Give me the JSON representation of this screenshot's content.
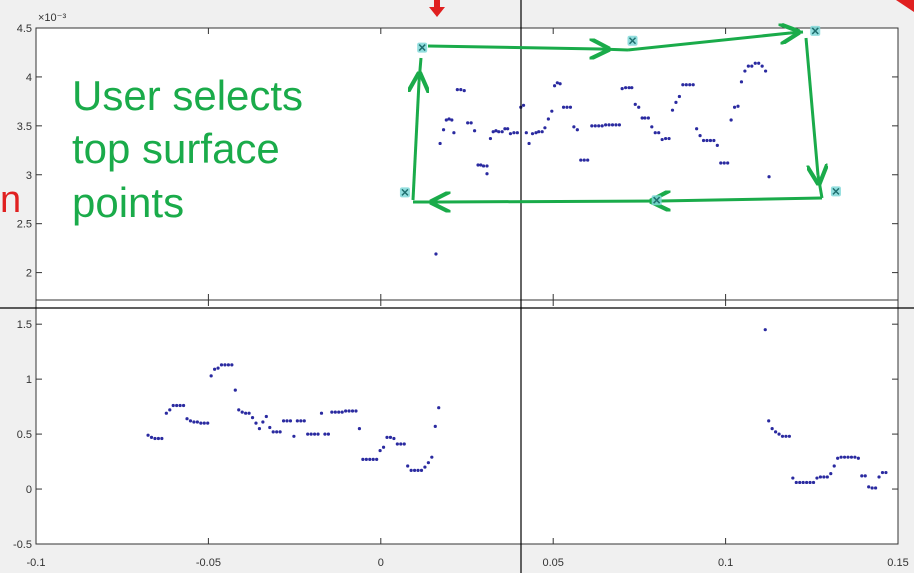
{
  "annotation": {
    "main_lines": [
      "User selects",
      "top surface",
      "points"
    ],
    "side_fragment": "n",
    "color": "#1aab4a",
    "marker_color": "#e02020"
  },
  "colors": {
    "figure_bg": "#f0f0f0",
    "axes_bg": "#ffffff",
    "point_color": "#2a2aa0",
    "selection_marker_fill": "#7fd8d8",
    "selection_marker_stroke": "#1f6f6f",
    "crosshair": "#000000",
    "frame": "#333333"
  },
  "chart_data": [
    {
      "id": "top",
      "type": "scatter",
      "y_exponent_label": "×10⁻³",
      "y_tick_labels": [
        "2",
        "2.5",
        "3",
        "3.5",
        "4",
        "4.5"
      ],
      "yticks": [
        2,
        2.5,
        3,
        3.5,
        4,
        4.5
      ],
      "ylim": [
        1.72,
        4.5
      ],
      "xlim": [
        -0.1,
        0.15
      ],
      "xticks": [
        -0.1,
        -0.05,
        0,
        0.05,
        0.1,
        0.15
      ],
      "grid": false,
      "points": [
        [
          0.016,
          2.19
        ],
        [
          0.0172,
          3.32
        ],
        [
          0.0182,
          3.46
        ],
        [
          0.019,
          3.56
        ],
        [
          0.0198,
          3.57
        ],
        [
          0.0206,
          3.56
        ],
        [
          0.0212,
          3.43
        ],
        [
          0.0222,
          3.87
        ],
        [
          0.0232,
          3.87
        ],
        [
          0.0242,
          3.86
        ],
        [
          0.0252,
          3.53
        ],
        [
          0.0262,
          3.53
        ],
        [
          0.0272,
          3.45
        ],
        [
          0.0282,
          3.1
        ],
        [
          0.029,
          3.1
        ],
        [
          0.0298,
          3.09
        ],
        [
          0.0308,
          3.01
        ],
        [
          0.0308,
          3.09
        ],
        [
          0.0318,
          3.37
        ],
        [
          0.0326,
          3.44
        ],
        [
          0.0334,
          3.45
        ],
        [
          0.0342,
          3.44
        ],
        [
          0.0352,
          3.44
        ],
        [
          0.036,
          3.47
        ],
        [
          0.0368,
          3.47
        ],
        [
          0.0376,
          3.42
        ],
        [
          0.0386,
          3.43
        ],
        [
          0.0396,
          3.43
        ],
        [
          0.0406,
          3.69
        ],
        [
          0.0414,
          3.71
        ],
        [
          0.0422,
          3.43
        ],
        [
          0.043,
          3.32
        ],
        [
          0.044,
          3.42
        ],
        [
          0.045,
          3.43
        ],
        [
          0.0458,
          3.44
        ],
        [
          0.0468,
          3.44
        ],
        [
          0.0476,
          3.48
        ],
        [
          0.0486,
          3.57
        ],
        [
          0.0496,
          3.65
        ],
        [
          0.0504,
          3.91
        ],
        [
          0.0512,
          3.94
        ],
        [
          0.052,
          3.93
        ],
        [
          0.053,
          3.69
        ],
        [
          0.054,
          3.69
        ],
        [
          0.055,
          3.69
        ],
        [
          0.056,
          3.49
        ],
        [
          0.057,
          3.46
        ],
        [
          0.058,
          3.15
        ],
        [
          0.059,
          3.15
        ],
        [
          0.06,
          3.15
        ],
        [
          0.0612,
          3.5
        ],
        [
          0.0622,
          3.5
        ],
        [
          0.0632,
          3.5
        ],
        [
          0.0642,
          3.5
        ],
        [
          0.0652,
          3.51
        ],
        [
          0.0662,
          3.51
        ],
        [
          0.0672,
          3.51
        ],
        [
          0.0682,
          3.51
        ],
        [
          0.0692,
          3.51
        ],
        [
          0.07,
          3.88
        ],
        [
          0.071,
          3.89
        ],
        [
          0.072,
          3.89
        ],
        [
          0.0728,
          3.89
        ],
        [
          0.0738,
          3.72
        ],
        [
          0.0748,
          3.69
        ],
        [
          0.0758,
          3.58
        ],
        [
          0.0766,
          3.58
        ],
        [
          0.0776,
          3.58
        ],
        [
          0.0786,
          3.49
        ],
        [
          0.0796,
          3.43
        ],
        [
          0.0806,
          3.43
        ],
        [
          0.0816,
          3.36
        ],
        [
          0.0826,
          3.37
        ],
        [
          0.0836,
          3.37
        ],
        [
          0.0846,
          3.66
        ],
        [
          0.0856,
          3.74
        ],
        [
          0.0866,
          3.8
        ],
        [
          0.0876,
          3.92
        ],
        [
          0.0886,
          3.92
        ],
        [
          0.0896,
          3.92
        ],
        [
          0.0906,
          3.92
        ],
        [
          0.0916,
          3.47
        ],
        [
          0.0926,
          3.4
        ],
        [
          0.0936,
          3.35
        ],
        [
          0.0946,
          3.35
        ],
        [
          0.0956,
          3.35
        ],
        [
          0.0966,
          3.35
        ],
        [
          0.0976,
          3.3
        ],
        [
          0.0986,
          3.12
        ],
        [
          0.0996,
          3.12
        ],
        [
          0.1006,
          3.12
        ],
        [
          0.1016,
          3.56
        ],
        [
          0.1026,
          3.69
        ],
        [
          0.1036,
          3.7
        ],
        [
          0.1046,
          3.95
        ],
        [
          0.1056,
          4.06
        ],
        [
          0.1066,
          4.11
        ],
        [
          0.1076,
          4.11
        ],
        [
          0.1086,
          4.14
        ],
        [
          0.1096,
          4.14
        ],
        [
          0.1106,
          4.11
        ],
        [
          0.1116,
          4.06
        ],
        [
          0.1126,
          2.98
        ]
      ],
      "selected_points": [
        [
          0.012,
          4.3
        ],
        [
          0.073,
          4.37
        ],
        [
          0.126,
          4.47
        ],
        [
          0.132,
          2.83
        ],
        [
          0.08,
          2.74
        ],
        [
          0.007,
          2.82
        ]
      ]
    },
    {
      "id": "bottom",
      "type": "scatter",
      "y_tick_labels": [
        "-0.5",
        "0",
        "0.5",
        "1",
        "1.5"
      ],
      "yticks": [
        -0.5,
        0,
        0.5,
        1,
        1.5
      ],
      "ylim": [
        -0.5,
        1.72
      ],
      "xlim": [
        -0.1,
        0.15
      ],
      "x_tick_labels": [
        "-0.1",
        "-0.05",
        "0",
        "0.05",
        "0.1",
        "0.15"
      ],
      "xticks": [
        -0.1,
        -0.05,
        0,
        0.05,
        0.1,
        0.15
      ],
      "grid": false,
      "points": [
        [
          -0.0675,
          0.49
        ],
        [
          -0.0665,
          0.47
        ],
        [
          -0.0655,
          0.46
        ],
        [
          -0.0645,
          0.46
        ],
        [
          -0.0635,
          0.46
        ],
        [
          -0.0622,
          0.69
        ],
        [
          -0.0612,
          0.72
        ],
        [
          -0.0602,
          0.76
        ],
        [
          -0.0592,
          0.76
        ],
        [
          -0.0582,
          0.76
        ],
        [
          -0.0572,
          0.76
        ],
        [
          -0.0562,
          0.64
        ],
        [
          -0.0552,
          0.62
        ],
        [
          -0.0542,
          0.61
        ],
        [
          -0.0532,
          0.61
        ],
        [
          -0.0522,
          0.6
        ],
        [
          -0.0512,
          0.6
        ],
        [
          -0.0502,
          0.6
        ],
        [
          -0.0492,
          1.03
        ],
        [
          -0.0482,
          1.09
        ],
        [
          -0.0472,
          1.1
        ],
        [
          -0.0462,
          1.13
        ],
        [
          -0.0452,
          1.13
        ],
        [
          -0.0442,
          1.13
        ],
        [
          -0.0432,
          1.13
        ],
        [
          -0.0422,
          0.9
        ],
        [
          -0.0412,
          0.72
        ],
        [
          -0.0402,
          0.7
        ],
        [
          -0.0392,
          0.69
        ],
        [
          -0.0382,
          0.69
        ],
        [
          -0.0372,
          0.65
        ],
        [
          -0.0362,
          0.6
        ],
        [
          -0.0352,
          0.55
        ],
        [
          -0.0342,
          0.61
        ],
        [
          -0.0332,
          0.66
        ],
        [
          -0.0322,
          0.56
        ],
        [
          -0.0312,
          0.52
        ],
        [
          -0.0302,
          0.52
        ],
        [
          -0.0292,
          0.52
        ],
        [
          -0.0282,
          0.62
        ],
        [
          -0.0272,
          0.62
        ],
        [
          -0.0262,
          0.62
        ],
        [
          -0.0252,
          0.48
        ],
        [
          -0.0242,
          0.62
        ],
        [
          -0.0232,
          0.62
        ],
        [
          -0.0222,
          0.62
        ],
        [
          -0.0212,
          0.5
        ],
        [
          -0.0202,
          0.5
        ],
        [
          -0.0192,
          0.5
        ],
        [
          -0.0182,
          0.5
        ],
        [
          -0.0172,
          0.69
        ],
        [
          -0.0162,
          0.5
        ],
        [
          -0.0152,
          0.5
        ],
        [
          -0.0142,
          0.7
        ],
        [
          -0.0132,
          0.7
        ],
        [
          -0.0122,
          0.7
        ],
        [
          -0.0112,
          0.7
        ],
        [
          -0.0102,
          0.71
        ],
        [
          -0.0092,
          0.71
        ],
        [
          -0.0082,
          0.71
        ],
        [
          -0.0072,
          0.71
        ],
        [
          -0.0062,
          0.55
        ],
        [
          -0.0052,
          0.27
        ],
        [
          -0.0042,
          0.27
        ],
        [
          -0.0032,
          0.27
        ],
        [
          -0.0022,
          0.27
        ],
        [
          -0.0012,
          0.27
        ],
        [
          -0.0002,
          0.35
        ],
        [
          0.0008,
          0.38
        ],
        [
          0.0018,
          0.47
        ],
        [
          0.0028,
          0.47
        ],
        [
          0.0038,
          0.46
        ],
        [
          0.0048,
          0.41
        ],
        [
          0.0058,
          0.41
        ],
        [
          0.0068,
          0.41
        ],
        [
          0.0078,
          0.21
        ],
        [
          0.0088,
          0.17
        ],
        [
          0.0098,
          0.17
        ],
        [
          0.0108,
          0.17
        ],
        [
          0.0118,
          0.17
        ],
        [
          0.0128,
          0.2
        ],
        [
          0.0138,
          0.24
        ],
        [
          0.0148,
          0.29
        ],
        [
          0.0158,
          0.57
        ],
        [
          0.0168,
          0.74
        ],
        [
          0.1115,
          1.45
        ],
        [
          0.1125,
          0.62
        ],
        [
          0.1135,
          0.55
        ],
        [
          0.1145,
          0.52
        ],
        [
          0.1155,
          0.5
        ],
        [
          0.1165,
          0.48
        ],
        [
          0.1175,
          0.48
        ],
        [
          0.1185,
          0.48
        ],
        [
          0.1195,
          0.1
        ],
        [
          0.1205,
          0.06
        ],
        [
          0.1215,
          0.06
        ],
        [
          0.1225,
          0.06
        ],
        [
          0.1235,
          0.06
        ],
        [
          0.1245,
          0.06
        ],
        [
          0.1255,
          0.06
        ],
        [
          0.1265,
          0.1
        ],
        [
          0.1275,
          0.11
        ],
        [
          0.1285,
          0.11
        ],
        [
          0.1295,
          0.11
        ],
        [
          0.1305,
          0.14
        ],
        [
          0.1315,
          0.21
        ],
        [
          0.1325,
          0.28
        ],
        [
          0.1335,
          0.29
        ],
        [
          0.1345,
          0.29
        ],
        [
          0.1355,
          0.29
        ],
        [
          0.1365,
          0.29
        ],
        [
          0.1375,
          0.29
        ],
        [
          0.1385,
          0.28
        ],
        [
          0.1395,
          0.12
        ],
        [
          0.1405,
          0.12
        ],
        [
          0.1415,
          0.02
        ],
        [
          0.1425,
          0.01
        ],
        [
          0.1435,
          0.01
        ],
        [
          0.1445,
          0.11
        ],
        [
          0.1455,
          0.15
        ],
        [
          0.1465,
          0.15
        ]
      ]
    }
  ]
}
